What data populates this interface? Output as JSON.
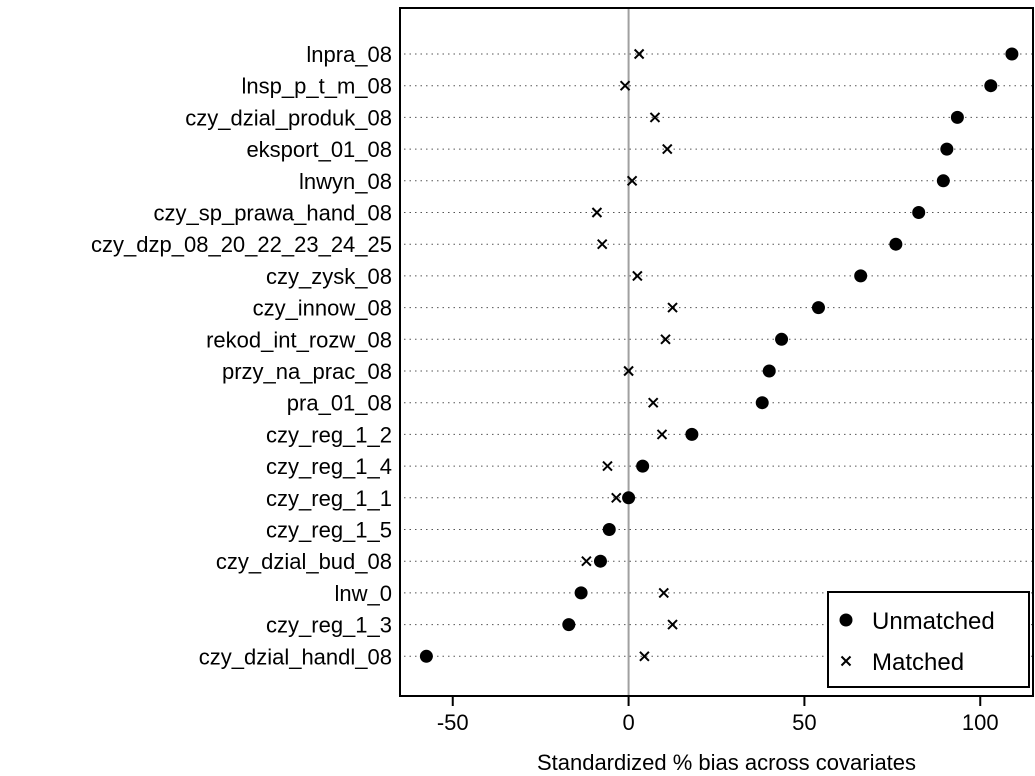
{
  "chart_data": {
    "type": "scatter",
    "title": "",
    "xlabel": "Standardized % bias across covariates",
    "ylabel": "",
    "xlim": [
      -65,
      115
    ],
    "xticks": [
      -50,
      0,
      50,
      100
    ],
    "reference_line_x": 0,
    "grid": "dotted horizontal lines per covariate",
    "legend_position": "bottom-right",
    "categories": [
      "lnpra_08",
      "lnsp_p_t_m_08",
      "czy_dzial_produk_08",
      "eksport_01_08",
      "lnwyn_08",
      "czy_sp_prawa_hand_08",
      "czy_dzp_08_20_22_23_24_25",
      "czy_zysk_08",
      "czy_innow_08",
      "rekod_int_rozw_08",
      "przy_na_prac_08",
      "pra_01_08",
      "czy_reg_1_2",
      "czy_reg_1_4",
      "czy_reg_1_1",
      "czy_reg_1_5",
      "czy_dzial_bud_08",
      "lnw_0",
      "czy_reg_1_3",
      "czy_dzial_handl_08"
    ],
    "series": [
      {
        "name": "Unmatched",
        "marker": "circle",
        "values": [
          109,
          103,
          93.5,
          90.5,
          89.5,
          82.5,
          76,
          66,
          54,
          43.5,
          40,
          38,
          18,
          4,
          0,
          -5.5,
          -8,
          -13.5,
          -17,
          -57.5
        ]
      },
      {
        "name": "Matched",
        "marker": "x",
        "values": [
          3,
          -1,
          7.5,
          11,
          1,
          -9,
          -7.5,
          2.5,
          12.5,
          10.5,
          0,
          7,
          9.5,
          -6,
          -3.5,
          null,
          -12,
          10,
          12.5,
          4.5
        ]
      }
    ]
  }
}
